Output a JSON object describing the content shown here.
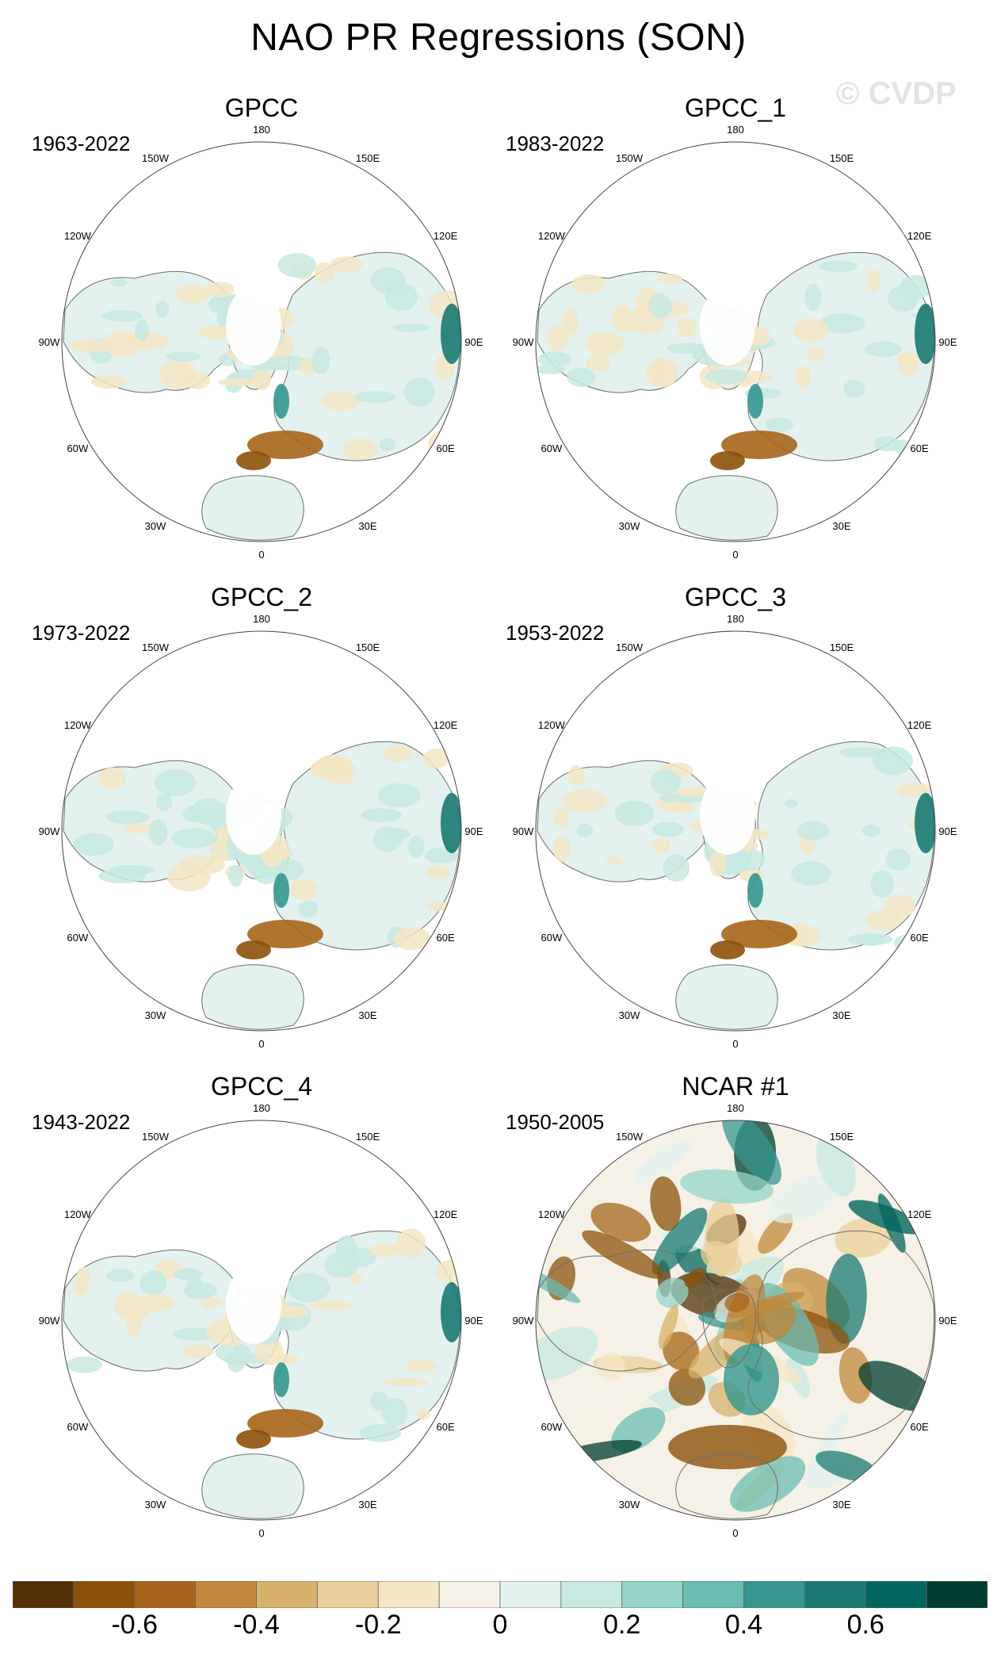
{
  "title": "NAO PR Regressions (SON)",
  "watermark": "© CVDP",
  "longitude_labels": [
    "180",
    "150E",
    "120E",
    "90E",
    "60E",
    "30E",
    "0",
    "30W",
    "60W",
    "90W",
    "120W",
    "150W"
  ],
  "panels": [
    {
      "title": "GPCC",
      "years": "1963-2022"
    },
    {
      "title": "GPCC_1",
      "years": "1983-2022"
    },
    {
      "title": "GPCC_2",
      "years": "1973-2022"
    },
    {
      "title": "GPCC_3",
      "years": "1953-2022"
    },
    {
      "title": "GPCC_4",
      "years": "1943-2022"
    },
    {
      "title": "NCAR #1",
      "years": "1950-2005"
    }
  ],
  "colorbar": {
    "colors": [
      "#543005",
      "#8c510a",
      "#a6651a",
      "#c1873b",
      "#d7b26c",
      "#e9d09a",
      "#f5e6c4",
      "#f5f1e6",
      "#e3f1ef",
      "#c7e9e1",
      "#94d4c9",
      "#6bbcb1",
      "#35978f",
      "#1a7a72",
      "#01665e",
      "#003c30"
    ],
    "tick_labels": [
      "-0.6",
      "-0.4",
      "-0.2",
      "0",
      "0.2",
      "0.4",
      "0.6"
    ]
  },
  "colors": {
    "wet": "#35978f",
    "dry": "#a6651a",
    "coast": "#6f6f6f"
  }
}
